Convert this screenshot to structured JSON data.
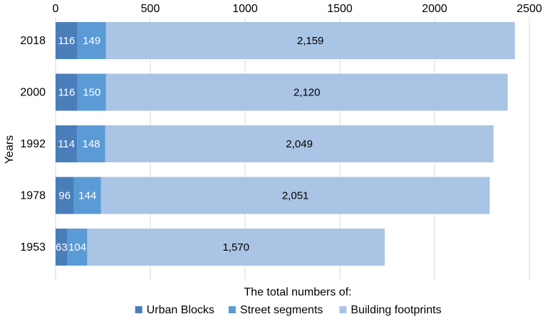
{
  "chart_data": {
    "type": "bar",
    "orientation": "horizontal",
    "stacked": true,
    "categories": [
      "2018",
      "2000",
      "1992",
      "1978",
      "1953"
    ],
    "series": [
      {
        "name": "Urban Blocks",
        "values": [
          116,
          116,
          114,
          96,
          63
        ],
        "labels": [
          "116",
          "116",
          "114",
          "96",
          "63"
        ],
        "color": "#4a7ebb"
      },
      {
        "name": "Street segments",
        "values": [
          149,
          150,
          148,
          144,
          104
        ],
        "labels": [
          "149",
          "150",
          "148",
          "144",
          "104"
        ],
        "color": "#5b9bd5"
      },
      {
        "name": "Building footprints",
        "values": [
          2159,
          2120,
          2049,
          2051,
          1570
        ],
        "labels": [
          "2,159",
          "2,120",
          "2,049",
          "2,051",
          "1,570"
        ],
        "color": "#a9c4e4"
      }
    ],
    "xlim": [
      0,
      2500
    ],
    "xticks": [
      0,
      500,
      1000,
      1500,
      2000,
      2500
    ],
    "x_axis_position": "top",
    "xlabel": "The total numbers of:",
    "ylabel": "Years",
    "grid": true,
    "legend": "bottom"
  }
}
